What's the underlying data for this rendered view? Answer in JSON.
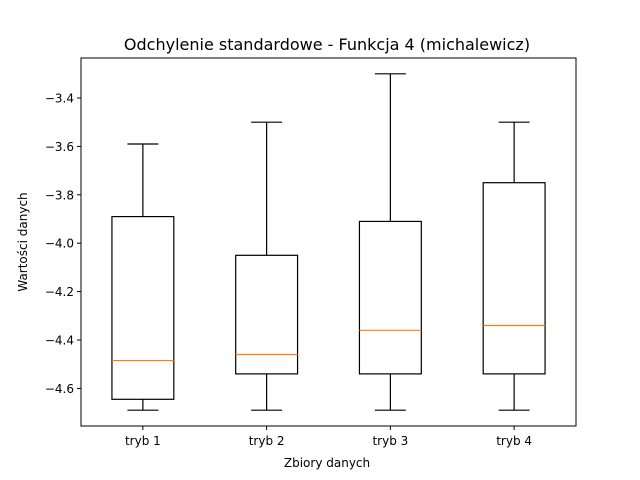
{
  "chart_data": {
    "type": "box",
    "title": "Odchylenie standardowe - Funkcja 4 (michalewicz)",
    "xlabel": "Zbiory danych",
    "ylabel": "Wartości danych",
    "categories": [
      "tryb 1",
      "tryb 2",
      "tryb 3",
      "tryb 4"
    ],
    "boxes": [
      {
        "name": "tryb 1",
        "whisker_low": -4.69,
        "q1": -4.645,
        "median": -4.485,
        "q3": -3.89,
        "whisker_high": -3.59
      },
      {
        "name": "tryb 2",
        "whisker_low": -4.69,
        "q1": -4.54,
        "median": -4.46,
        "q3": -4.05,
        "whisker_high": -3.5
      },
      {
        "name": "tryb 3",
        "whisker_low": -4.69,
        "q1": -4.54,
        "median": -4.36,
        "q3": -3.91,
        "whisker_high": -3.3
      },
      {
        "name": "tryb 4",
        "whisker_low": -4.69,
        "q1": -4.54,
        "median": -4.34,
        "q3": -3.75,
        "whisker_high": -3.5
      }
    ],
    "y_ticks": [
      -4.6,
      -4.4,
      -4.2,
      -4.0,
      -3.8,
      -3.6,
      -3.4
    ],
    "y_tick_labels": [
      "−4.6",
      "−4.4",
      "−4.2",
      "−4.0",
      "−3.8",
      "−3.6",
      "−3.4"
    ],
    "ylim": [
      -4.7553,
      -3.2347
    ],
    "grid": false,
    "colors": {
      "box": "#000000",
      "median": "#ff7f0e"
    }
  }
}
